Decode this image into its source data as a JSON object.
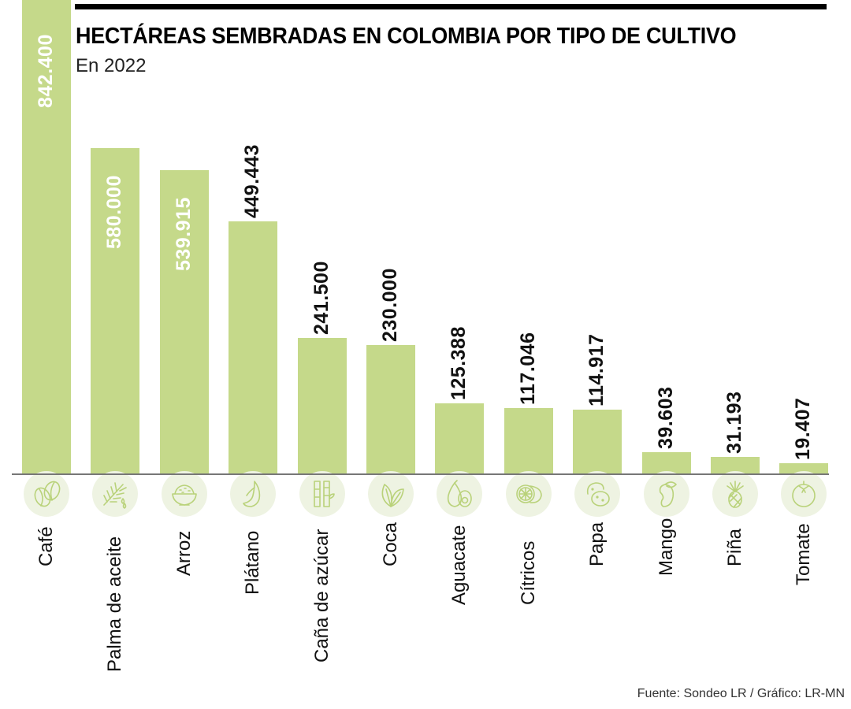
{
  "header": {
    "title": "HECTÁREAS SEMBRADAS EN COLOMBIA POR TIPO DE CULTIVO",
    "subtitle": "En 2022"
  },
  "footer": {
    "source": "Fuente: Sondeo LR / Gráfico: LR-MN"
  },
  "colors": {
    "bar": "#c5d98a",
    "icon_bg": "#eef3e2",
    "icon_stroke": "#b9d27a",
    "baseline": "#777777",
    "label_inside": "#ffffff",
    "label_outside": "#111111"
  },
  "bars": [
    {
      "category": "Café",
      "label": "842.400",
      "icon": "coffee-beans-icon"
    },
    {
      "category": "Palma de aceite",
      "label": "580.000",
      "icon": "palm-leaf-oil-icon"
    },
    {
      "category": "Arroz",
      "label": "539.915",
      "icon": "rice-bowl-icon"
    },
    {
      "category": "Plátano",
      "label": "449.443",
      "icon": "banana-icon"
    },
    {
      "category": "Caña de azúcar",
      "label": "241.500",
      "icon": "sugarcane-icon"
    },
    {
      "category": "Coca",
      "label": "230.000",
      "icon": "coca-leaf-icon"
    },
    {
      "category": "Aguacate",
      "label": "125.388",
      "icon": "avocado-icon"
    },
    {
      "category": "Cítricos",
      "label": "117.046",
      "icon": "citrus-icon"
    },
    {
      "category": "Papa",
      "label": "114.917",
      "icon": "potato-icon"
    },
    {
      "category": "Mango",
      "label": "39.603",
      "icon": "mango-icon"
    },
    {
      "category": "Piña",
      "label": "31.193",
      "icon": "pineapple-icon"
    },
    {
      "category": "Tomate",
      "label": "19.407",
      "icon": "tomato-icon"
    }
  ],
  "chart_data": {
    "type": "bar",
    "title": "HECTÁREAS SEMBRADAS EN COLOMBIA POR TIPO DE CULTIVO",
    "subtitle": "En 2022",
    "categories": [
      "Café",
      "Palma de aceite",
      "Arroz",
      "Plátano",
      "Caña de azúcar",
      "Coca",
      "Aguacate",
      "Cítricos",
      "Papa",
      "Mango",
      "Piña",
      "Tomate"
    ],
    "values": [
      842400,
      580000,
      539915,
      449443,
      241500,
      230000,
      125388,
      117046,
      114917,
      39603,
      31193,
      19407
    ],
    "xlabel": "",
    "ylabel": "Hectáreas",
    "ylim": [
      0,
      842400
    ],
    "grid": false,
    "legend": "none",
    "value_labels": true,
    "source": "Fuente: Sondeo LR / Gráfico: LR-MN"
  }
}
